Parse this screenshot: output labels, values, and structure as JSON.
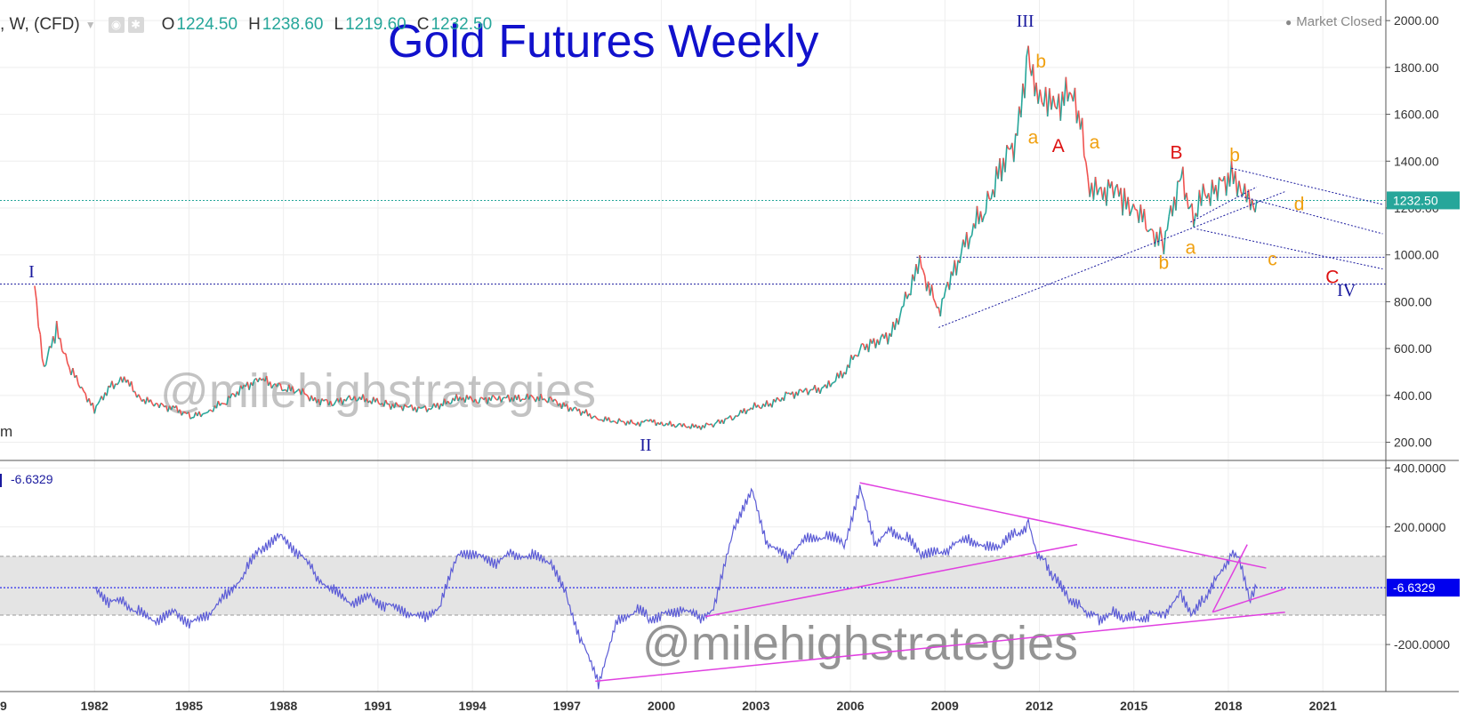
{
  "header": {
    "symbol": ", W, (CFD)",
    "open_label": "O",
    "open": "1224.50",
    "high_label": "H",
    "high": "1238.60",
    "low_label": "L",
    "low": "1219.60",
    "close_label": "C",
    "close": "1232.50",
    "market_status": "Market Closed",
    "left_fragment": "m"
  },
  "colors": {
    "title": "#1111cc",
    "up_candle": "#26a69a",
    "down_candle": "#ef5350",
    "indicator_line": "#5c5cd6",
    "trendline_pink": "#e040e0",
    "wave_blue": "#1a1a9e",
    "wave_red": "#dd1111",
    "wave_orange": "#f0a010",
    "last_price_tag": "#26a69a",
    "indicator_tag": "#0000ee"
  },
  "chart_data": [
    {
      "type": "line",
      "title": "Gold Futures Weekly",
      "x": [
        1980.1,
        1980.4,
        1980.8,
        1981.2,
        1981.6,
        1982.0,
        1982.5,
        1983.0,
        1983.4,
        1984.0,
        1984.6,
        1985.1,
        1985.6,
        1986.2,
        1986.8,
        1987.3,
        1987.9,
        1988.5,
        1989.0,
        1989.6,
        1990.2,
        1990.8,
        1991.3,
        1991.9,
        1992.5,
        1993.0,
        1993.6,
        1994.2,
        1994.8,
        1995.3,
        1995.9,
        1996.5,
        1997.0,
        1997.5,
        1998.0,
        1998.6,
        1999.2,
        1999.6,
        2000.0,
        2000.6,
        2001.2,
        2001.7,
        2002.3,
        2002.9,
        2003.4,
        2004.0,
        2004.6,
        2005.2,
        2005.8,
        2006.3,
        2006.8,
        2007.3,
        2007.8,
        2008.2,
        2008.8,
        2009.2,
        2009.8,
        2010.3,
        2010.8,
        2011.3,
        2011.65,
        2011.9,
        2012.2,
        2012.5,
        2012.9,
        2013.3,
        2013.6,
        2013.9,
        2014.3,
        2014.7,
        2015.1,
        2015.5,
        2015.95,
        2016.5,
        2016.9,
        2017.2,
        2017.6,
        2018.1,
        2018.4,
        2018.7,
        2018.9
      ],
      "values": [
        850,
        520,
        680,
        520,
        430,
        340,
        440,
        470,
        390,
        360,
        340,
        310,
        330,
        380,
        440,
        470,
        430,
        420,
        380,
        370,
        390,
        380,
        360,
        350,
        340,
        360,
        390,
        380,
        390,
        385,
        390,
        380,
        350,
        330,
        300,
        290,
        280,
        290,
        280,
        270,
        265,
        280,
        310,
        350,
        360,
        400,
        420,
        430,
        500,
        600,
        630,
        660,
        820,
        960,
        760,
        900,
        1100,
        1200,
        1380,
        1500,
        1890,
        1650,
        1700,
        1600,
        1730,
        1560,
        1300,
        1250,
        1300,
        1220,
        1200,
        1100,
        1060,
        1340,
        1150,
        1250,
        1280,
        1340,
        1300,
        1200,
        1232.5
      ],
      "ylim": [
        130,
        2050
      ],
      "xlim": [
        1979,
        2023
      ],
      "y_ticks": [
        "200.00",
        "400.00",
        "600.00",
        "800.00",
        "1000.00",
        "1200.00",
        "1400.00",
        "1600.00",
        "1800.00",
        "2000.00"
      ],
      "x_ticks": [
        "1982",
        "1985",
        "1988",
        "1991",
        "1994",
        "1997",
        "2000",
        "2003",
        "2006",
        "2009",
        "2012",
        "2015",
        "2018",
        "2021"
      ],
      "x_tick_left_fragment": "9",
      "last_price": 1232.5,
      "last_price_label": "1232.50",
      "horizontal_levels": [
        1232.5,
        990,
        875
      ],
      "wave_labels": [
        {
          "text": "I",
          "x": 1980.0,
          "y": 905,
          "color": "blue"
        },
        {
          "text": "II",
          "x": 1999.5,
          "y": 165,
          "color": "blue"
        },
        {
          "text": "III",
          "x": 2011.55,
          "y": 1975,
          "color": "blue"
        },
        {
          "text": "IV",
          "x": 2021.75,
          "y": 825,
          "color": "blue"
        },
        {
          "text": "A",
          "x": 2012.6,
          "y": 1440,
          "color": "red"
        },
        {
          "text": "B",
          "x": 2016.35,
          "y": 1410,
          "color": "red"
        },
        {
          "text": "C",
          "x": 2021.3,
          "y": 880,
          "color": "red"
        },
        {
          "text": "a",
          "x": 2011.8,
          "y": 1475,
          "color": "orange"
        },
        {
          "text": "b",
          "x": 2012.05,
          "y": 1800,
          "color": "orange"
        },
        {
          "text": "a",
          "x": 2013.75,
          "y": 1455,
          "color": "orange"
        },
        {
          "text": "b",
          "x": 2015.95,
          "y": 940,
          "color": "orange"
        },
        {
          "text": "a",
          "x": 2016.8,
          "y": 1005,
          "color": "orange"
        },
        {
          "text": "b",
          "x": 2018.2,
          "y": 1400,
          "color": "orange"
        },
        {
          "text": "c",
          "x": 2019.4,
          "y": 955,
          "color": "orange"
        },
        {
          "text": "d",
          "x": 2020.25,
          "y": 1190,
          "color": "orange"
        }
      ],
      "watermark": "@milehighstrategies"
    },
    {
      "type": "line",
      "series": [
        {
          "values": [
            null,
            null,
            null,
            null,
            null,
            -10,
            -55,
            -60,
            -90,
            -120,
            -90,
            -130,
            -100,
            -30,
            50,
            130,
            170,
            110,
            40,
            -20,
            -60,
            -40,
            -70,
            -90,
            -110,
            -60,
            120,
            100,
            80,
            110,
            100,
            80,
            -40,
            -200,
            -330,
            -120,
            -80,
            -110,
            -100,
            -80,
            -110,
            -70,
            200,
            320,
            130,
            100,
            160,
            170,
            140,
            330,
            140,
            190,
            160,
            110,
            110,
            130,
            160,
            130,
            140,
            180,
            210,
            110,
            80,
            20,
            -40,
            -70,
            -100,
            -110,
            -90,
            -110,
            -110,
            -100,
            -100,
            -30,
            -100,
            -50,
            20,
            110,
            80,
            -50,
            -6.6329
          ]
        }
      ],
      "x_shared_with_price": true,
      "ylim": [
        -360,
        420
      ],
      "y_ticks": [
        "400.0000",
        "200.0000",
        "-200.0000"
      ],
      "current_value": -6.6329,
      "current_value_label": "-6.6329",
      "band": [
        100,
        -100
      ],
      "zero_line": -6.6329,
      "trendlines": [
        {
          "from": [
            2006.3,
            350
          ],
          "to": [
            2019.2,
            60
          ]
        },
        {
          "from": [
            2001.4,
            -105
          ],
          "to": [
            2013.2,
            140
          ]
        },
        {
          "from": [
            1997.9,
            -325
          ],
          "to": [
            2019.8,
            -90
          ]
        },
        {
          "from": [
            2017.5,
            -90
          ],
          "to": [
            2018.6,
            140
          ]
        },
        {
          "from": [
            2017.5,
            -90
          ],
          "to": [
            2019.8,
            -10
          ]
        }
      ],
      "watermark": "@milehighstrategies"
    }
  ]
}
